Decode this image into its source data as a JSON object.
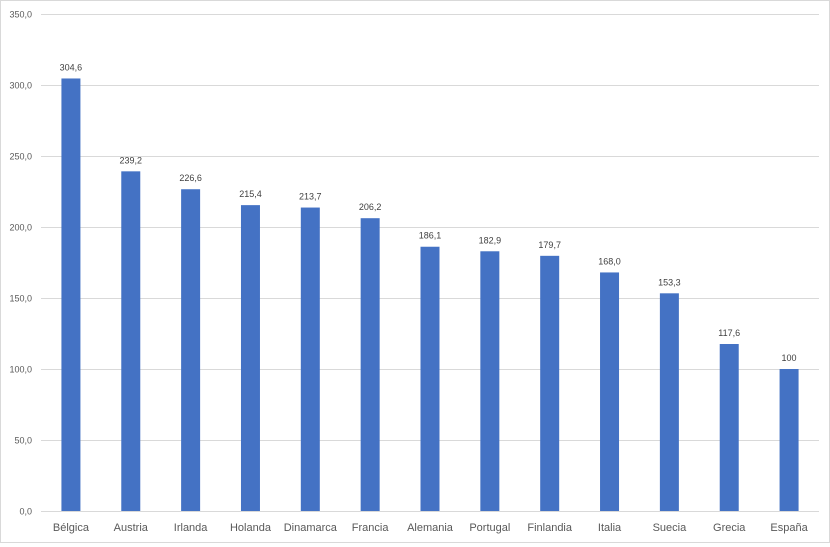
{
  "chart_data": {
    "type": "bar",
    "categories": [
      "Bélgica",
      "Austria",
      "Irlanda",
      "Holanda",
      "Dinamarca",
      "Francia",
      "Alemania",
      "Portugal",
      "Finlandia",
      "Italia",
      "Suecia",
      "Grecia",
      "España"
    ],
    "values": [
      304.6,
      239.2,
      226.6,
      215.4,
      213.7,
      206.2,
      186.1,
      182.9,
      179.7,
      168.0,
      153.3,
      117.6,
      100
    ],
    "data_labels": [
      "304,6",
      "239,2",
      "226,6",
      "215,4",
      "213,7",
      "206,2",
      "186,1",
      "182,9",
      "179,7",
      "168,0",
      "153,3",
      "117,6",
      "100"
    ],
    "y_ticks": [
      0,
      50,
      100,
      150,
      200,
      250,
      300,
      350
    ],
    "y_tick_labels": [
      "0,0",
      "50,0",
      "100,0",
      "150,0",
      "200,0",
      "250,0",
      "300,0",
      "350,0"
    ],
    "ylim": [
      0,
      350
    ],
    "grid": true,
    "legend": "none",
    "bar_color": "#4472c4"
  }
}
